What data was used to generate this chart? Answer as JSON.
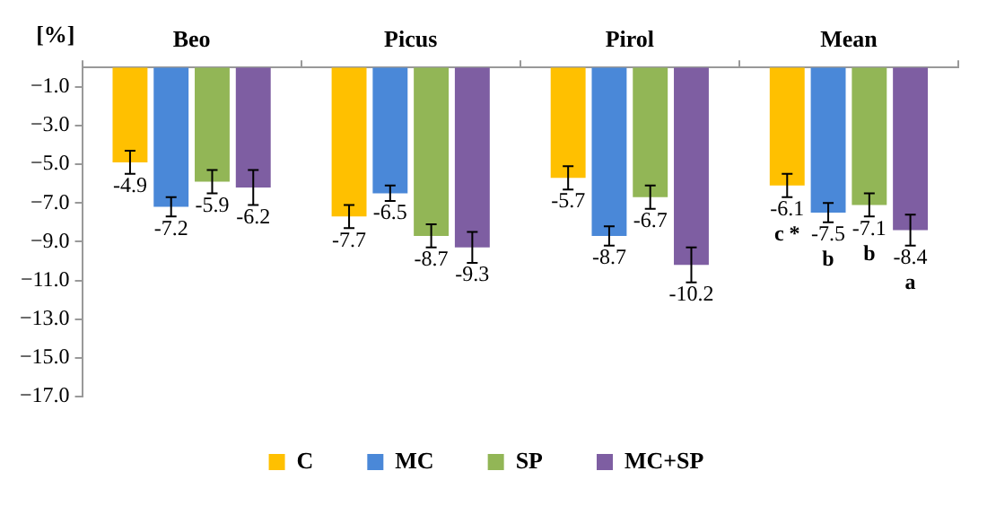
{
  "chart_data": {
    "type": "bar",
    "ylabel": "[%]",
    "categories": [
      "Beo",
      "Picus",
      "Pirol",
      "Mean"
    ],
    "series": [
      {
        "name": "C",
        "color": "#ffc000",
        "values": [
          -4.9,
          -7.7,
          -5.7,
          -6.1
        ],
        "errors": [
          0.6,
          0.6,
          0.6,
          0.6
        ]
      },
      {
        "name": "MC",
        "color": "#4a88d8",
        "values": [
          -7.2,
          -6.5,
          -8.7,
          -7.5
        ],
        "errors": [
          0.5,
          0.4,
          0.5,
          0.5
        ]
      },
      {
        "name": "SP",
        "color": "#92b656",
        "values": [
          -5.9,
          -8.7,
          -6.7,
          -7.1
        ],
        "errors": [
          0.6,
          0.6,
          0.6,
          0.6
        ]
      },
      {
        "name": "MC+SP",
        "color": "#7e5ea2",
        "values": [
          -6.2,
          -9.3,
          -10.2,
          -8.4
        ],
        "errors": [
          0.9,
          0.8,
          0.9,
          0.8
        ]
      }
    ],
    "ylim": [
      -17,
      0
    ],
    "yticks": [
      {
        "value": -1,
        "label": "−1.0"
      },
      {
        "value": -3,
        "label": "−3.0"
      },
      {
        "value": -5,
        "label": "−5.0"
      },
      {
        "value": -7,
        "label": "−7.0"
      },
      {
        "value": -9,
        "label": "−9.0"
      },
      {
        "value": -11,
        "label": "−11.0"
      },
      {
        "value": -13,
        "label": "−13.0"
      },
      {
        "value": -15,
        "label": "−15.0"
      },
      {
        "value": -17,
        "label": "−17.0"
      }
    ],
    "annotations": [
      "c *",
      "b",
      "b",
      "a"
    ],
    "data_labels": true,
    "grid": false,
    "legend": "bottom"
  }
}
